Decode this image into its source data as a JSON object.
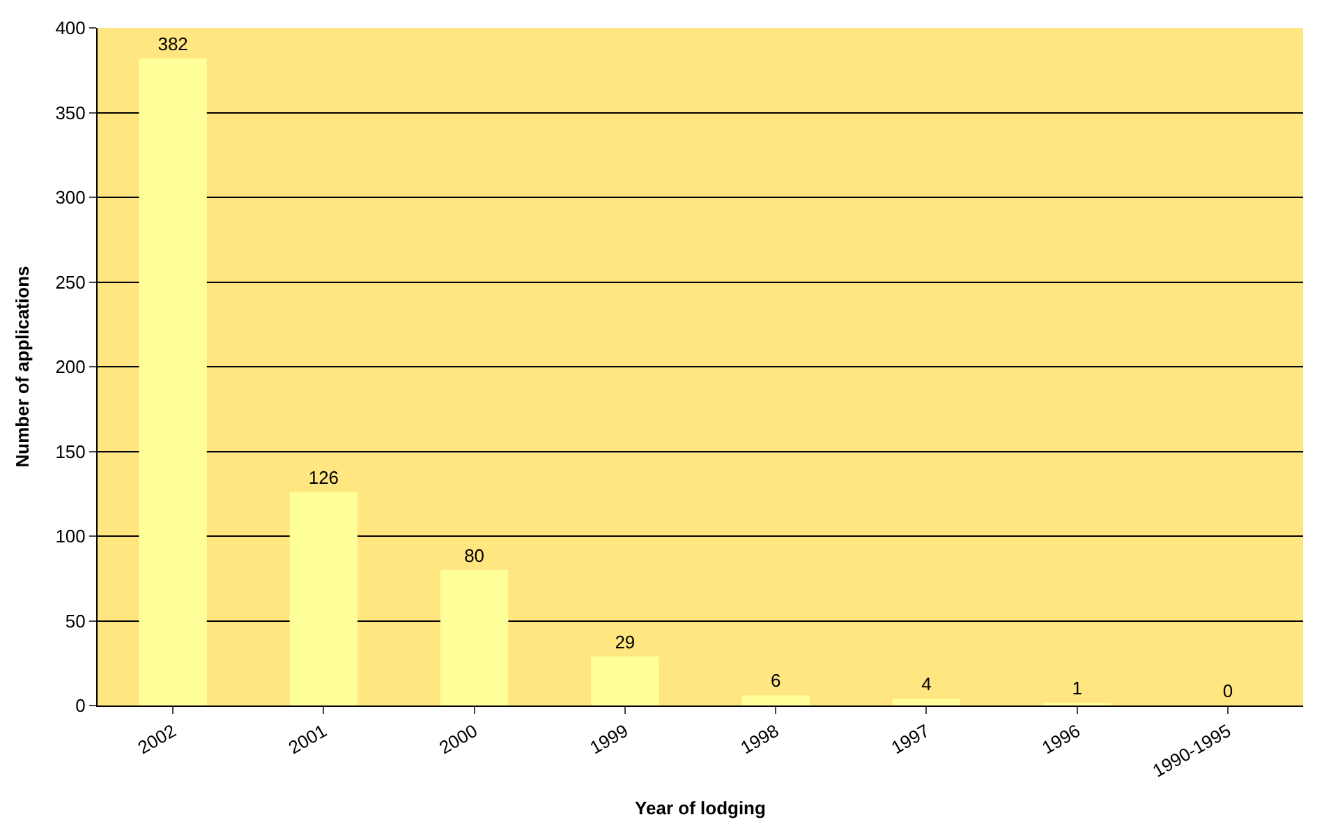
{
  "chart_data": {
    "type": "bar",
    "xlabel": "Year of lodging",
    "ylabel": "Number of applications",
    "categories": [
      "2002",
      "2001",
      "2000",
      "1999",
      "1998",
      "1997",
      "1996",
      "1990-1995"
    ],
    "values": [
      382,
      126,
      80,
      29,
      6,
      4,
      1,
      0
    ],
    "color": "#ffff99",
    "ylim": [
      0,
      400
    ],
    "yticks": [
      0,
      50,
      100,
      150,
      200,
      250,
      300,
      350,
      400
    ],
    "grid": "y",
    "data_labels": true
  }
}
